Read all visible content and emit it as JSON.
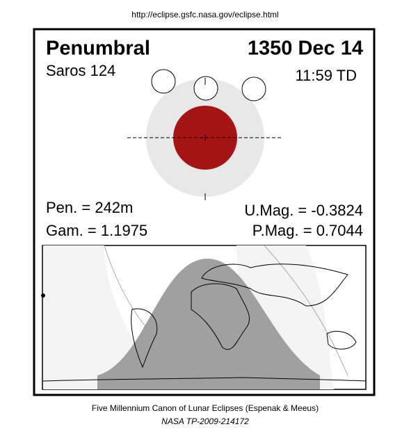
{
  "url": "http://eclipse.gsfc.nasa.gov/eclipse.html",
  "header": {
    "type": "Penumbral",
    "date": "1350 Dec 14",
    "saros": "Saros 124",
    "time": "11:59 TD"
  },
  "params": {
    "pen": "Pen. = 242m",
    "gam": "Gam. = 1.1975",
    "umag": "U.Mag. = -0.3824",
    "pmag": "P.Mag. = 0.7044"
  },
  "footer": {
    "line1": "Five Millennium Canon of Lunar Eclipses (Espenak & Meeus)",
    "line2": "NASA TP-2009-214172"
  }
}
